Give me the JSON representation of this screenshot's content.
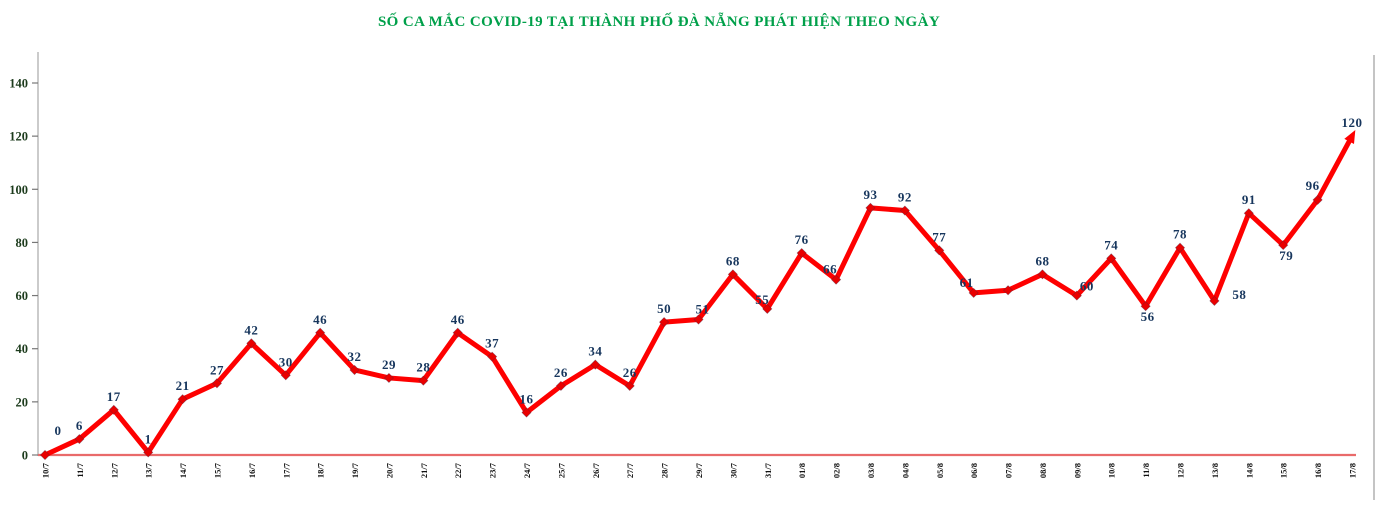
{
  "chart_data": {
    "type": "line",
    "title": "SỐ CA MẮC COVID-19 TẠI THÀNH PHỐ ĐÀ NẴNG PHÁT HIỆN THEO NGÀY",
    "categories": [
      "10/7",
      "11/7",
      "12/7",
      "13/7",
      "14/7",
      "15/7",
      "16/7",
      "17/7",
      "18/7",
      "19/7",
      "20/7",
      "21/7",
      "22/7",
      "23/7",
      "24/7",
      "25/7",
      "26/7",
      "27/7",
      "28/7",
      "29/7",
      "30/7",
      "31/7",
      "01/8",
      "02/8",
      "03/8",
      "04/8",
      "05/8",
      "06/8",
      "07/8",
      "08/8",
      "09/8",
      "10/8",
      "11/8",
      "12/8",
      "13/8",
      "14/8",
      "15/8",
      "16/8",
      "17/8"
    ],
    "values": [
      0,
      6,
      17,
      1,
      21,
      27,
      42,
      30,
      46,
      32,
      29,
      28,
      46,
      37,
      16,
      26,
      34,
      26,
      50,
      51,
      68,
      55,
      76,
      66,
      93,
      92,
      77,
      61,
      62,
      68,
      60,
      74,
      56,
      78,
      58,
      91,
      79,
      96,
      120
    ],
    "point_labels": [
      "0",
      "6",
      "17",
      "1",
      "21",
      "27",
      "42",
      "30",
      "46",
      "32",
      "29",
      "28",
      "46",
      "37",
      "16",
      "26",
      "34",
      "26",
      "50",
      "51",
      "68",
      "55",
      "76",
      "66",
      "93",
      "92",
      "77",
      "61",
      "",
      "68",
      "60",
      "74",
      "56",
      "78",
      "58",
      "91",
      "79",
      "96",
      "120"
    ],
    "ylim": [
      0,
      140
    ],
    "yticks": [
      0,
      20,
      40,
      60,
      80,
      100,
      120,
      140
    ],
    "grid": false,
    "legend": "none",
    "xlabel": "",
    "ylabel": "",
    "colors": {
      "line": "#fe0000",
      "marker": "#e90000",
      "baseline": "#e96a6a",
      "title": "#00a04a",
      "point_label": "#17365d",
      "ytick_label": "#1c3b1c",
      "xtick_label": "#111111",
      "axis": "#b5b5b5"
    }
  }
}
